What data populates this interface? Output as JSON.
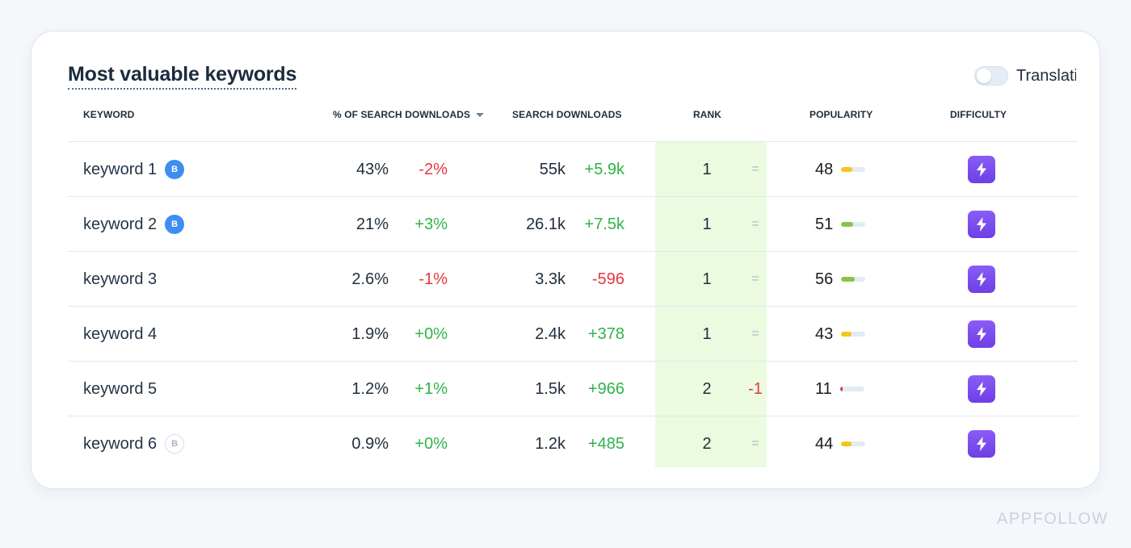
{
  "title": "Most valuable keywords",
  "toggle": {
    "label": "Translati",
    "on": false
  },
  "columns": {
    "keyword": "KEYWORD",
    "pct": "% OF SEARCH DOWNLOADS",
    "downloads": "SEARCH DOWNLOADS",
    "rank": "RANK",
    "popularity": "POPULARITY",
    "difficulty": "DIFFICULTY"
  },
  "sort": {
    "column": "pct",
    "direction": "desc",
    "icon": "sort-desc-icon"
  },
  "rows": [
    {
      "keyword": "keyword 1",
      "badge": "B",
      "badge_active": true,
      "pct": "43%",
      "pct_change": "-2%",
      "downloads": "55k",
      "downloads_change": "+5.9k",
      "rank": "1",
      "rank_change": "=",
      "popularity": "48",
      "popularity_level": 0.48
    },
    {
      "keyword": "keyword 2",
      "badge": "B",
      "badge_active": true,
      "pct": "21%",
      "pct_change": "+3%",
      "downloads": "26.1k",
      "downloads_change": "+7.5k",
      "rank": "1",
      "rank_change": "=",
      "popularity": "51",
      "popularity_level": 0.51
    },
    {
      "keyword": "keyword 3",
      "badge": "",
      "badge_active": false,
      "pct": "2.6%",
      "pct_change": "-1%",
      "downloads": "3.3k",
      "downloads_change": "-596",
      "rank": "1",
      "rank_change": "=",
      "popularity": "56",
      "popularity_level": 0.56
    },
    {
      "keyword": "keyword 4",
      "badge": "",
      "badge_active": false,
      "pct": "1.9%",
      "pct_change": "+0%",
      "downloads": "2.4k",
      "downloads_change": "+378",
      "rank": "1",
      "rank_change": "=",
      "popularity": "43",
      "popularity_level": 0.43
    },
    {
      "keyword": "keyword 5",
      "badge": "",
      "badge_active": false,
      "pct": "1.2%",
      "pct_change": "+1%",
      "downloads": "1.5k",
      "downloads_change": "+966",
      "rank": "2",
      "rank_change": "-1",
      "popularity": "11",
      "popularity_level": 0.11
    },
    {
      "keyword": "keyword 6",
      "badge": "B",
      "badge_active": false,
      "pct": "0.9%",
      "pct_change": "+0%",
      "downloads": "1.2k",
      "downloads_change": "+485",
      "rank": "2",
      "rank_change": "=",
      "popularity": "44",
      "popularity_level": 0.44
    }
  ],
  "difficulty_icon": "lightning-icon",
  "colors": {
    "positive": "#2fb34a",
    "negative": "#e5363f",
    "rank_highlight": "#ecfbdf",
    "difficulty_button": "#7b4cf0",
    "popularity_high": "#8bc34a",
    "popularity_mid": "#f5c518",
    "popularity_low": "#e5363f",
    "badge_active": "#3d8ef0"
  },
  "watermark": "APPFOLLOW"
}
